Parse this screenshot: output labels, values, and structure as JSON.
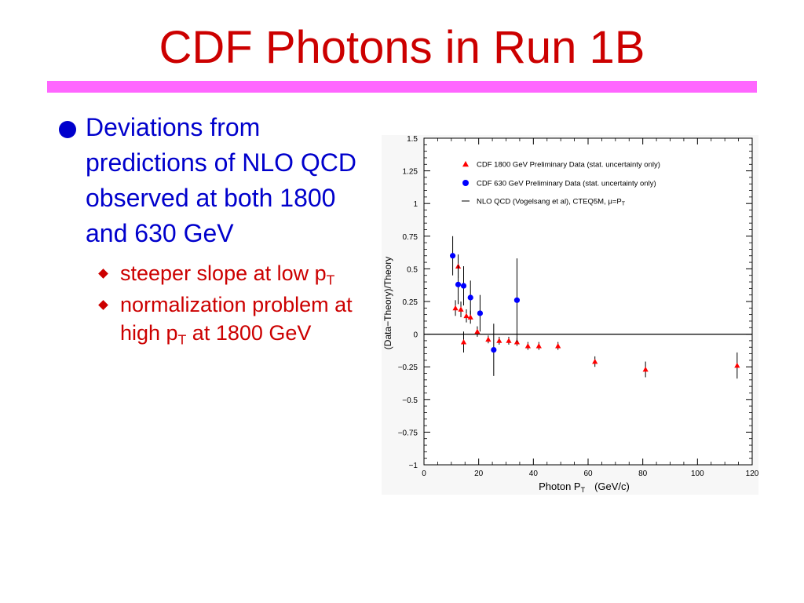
{
  "slide": {
    "title": "CDF Photons in Run 1B",
    "bullet_main": "Deviations from predictions of NLO QCD observed at both 1800 and 630 GeV",
    "sub1_text": "steeper  slope at low p",
    "sub1_sub": "T",
    "sub2_text1": "normalization problem at high p",
    "sub2_sub": "T",
    "sub2_text2": " at 1800 GeV"
  },
  "colors": {
    "title": "#cc0000",
    "rule": "#ff66ff",
    "bullet": "#0000cc",
    "sub_bullet": "#cc0000",
    "series_1800": "#ff0000",
    "series_630": "#0000ff"
  },
  "chart_data": {
    "type": "scatter",
    "xlabel": "Photon P",
    "xlabel_sub": "T",
    "xlabel_units": "(GeV/c)",
    "ylabel": "(Data−Theory)/Theory",
    "xlim": [
      0,
      120
    ],
    "ylim": [
      -1,
      1.5
    ],
    "x_ticks": [
      "0",
      "20",
      "40",
      "60",
      "80",
      "100",
      "120"
    ],
    "y_ticks": [
      "−1",
      "−0.75",
      "−0.5",
      "−0.25",
      "0",
      "0.25",
      "0.5",
      "0.75",
      "1",
      "1.25",
      "1.5"
    ],
    "legend": [
      {
        "marker": "triangle",
        "label": "CDF 1800 GeV Preliminary Data (stat. uncertainty only)"
      },
      {
        "marker": "circle",
        "label": "CDF 630 GeV Preliminary Data (stat. uncertainty only)"
      },
      {
        "marker": "line",
        "label": "NLO QCD (Vogelsang et al), CTEQ5M, μ=P",
        "label_sub": "T"
      }
    ],
    "legend_placement": "top-right",
    "reference_line_y": 0,
    "series": [
      {
        "name": "CDF 1800 GeV Preliminary Data (stat. uncertainty only)",
        "marker": "triangle",
        "points": [
          {
            "x": 11.5,
            "y": 0.2,
            "err": 0.06
          },
          {
            "x": 12.5,
            "y": 0.52,
            "err": 0.09
          },
          {
            "x": 13.5,
            "y": 0.19,
            "err": 0.06
          },
          {
            "x": 14.5,
            "y": -0.06,
            "err": 0.08
          },
          {
            "x": 15.5,
            "y": 0.14,
            "err": 0.05
          },
          {
            "x": 17.0,
            "y": 0.13,
            "err": 0.05
          },
          {
            "x": 19.5,
            "y": 0.02,
            "err": 0.04
          },
          {
            "x": 23.5,
            "y": -0.04,
            "err": 0.03
          },
          {
            "x": 27.5,
            "y": -0.05,
            "err": 0.03
          },
          {
            "x": 31.0,
            "y": -0.05,
            "err": 0.03
          },
          {
            "x": 34.0,
            "y": -0.06,
            "err": 0.03
          },
          {
            "x": 38.0,
            "y": -0.09,
            "err": 0.03
          },
          {
            "x": 42.0,
            "y": -0.09,
            "err": 0.03
          },
          {
            "x": 49.0,
            "y": -0.09,
            "err": 0.03
          },
          {
            "x": 62.5,
            "y": -0.21,
            "err": 0.04
          },
          {
            "x": 81.0,
            "y": -0.27,
            "err": 0.06
          },
          {
            "x": 114.5,
            "y": -0.24,
            "err": 0.1
          }
        ]
      },
      {
        "name": "CDF 630 GeV Preliminary Data (stat. uncertainty only)",
        "marker": "circle",
        "points": [
          {
            "x": 10.5,
            "y": 0.6,
            "err": 0.15
          },
          {
            "x": 12.5,
            "y": 0.38,
            "err": 0.15
          },
          {
            "x": 14.5,
            "y": 0.37,
            "err": 0.15
          },
          {
            "x": 17.0,
            "y": 0.28,
            "err": 0.13
          },
          {
            "x": 20.5,
            "y": 0.16,
            "err": 0.14
          },
          {
            "x": 25.5,
            "y": -0.12,
            "err": 0.2
          },
          {
            "x": 34.0,
            "y": 0.26,
            "err": 0.32
          }
        ]
      }
    ]
  }
}
